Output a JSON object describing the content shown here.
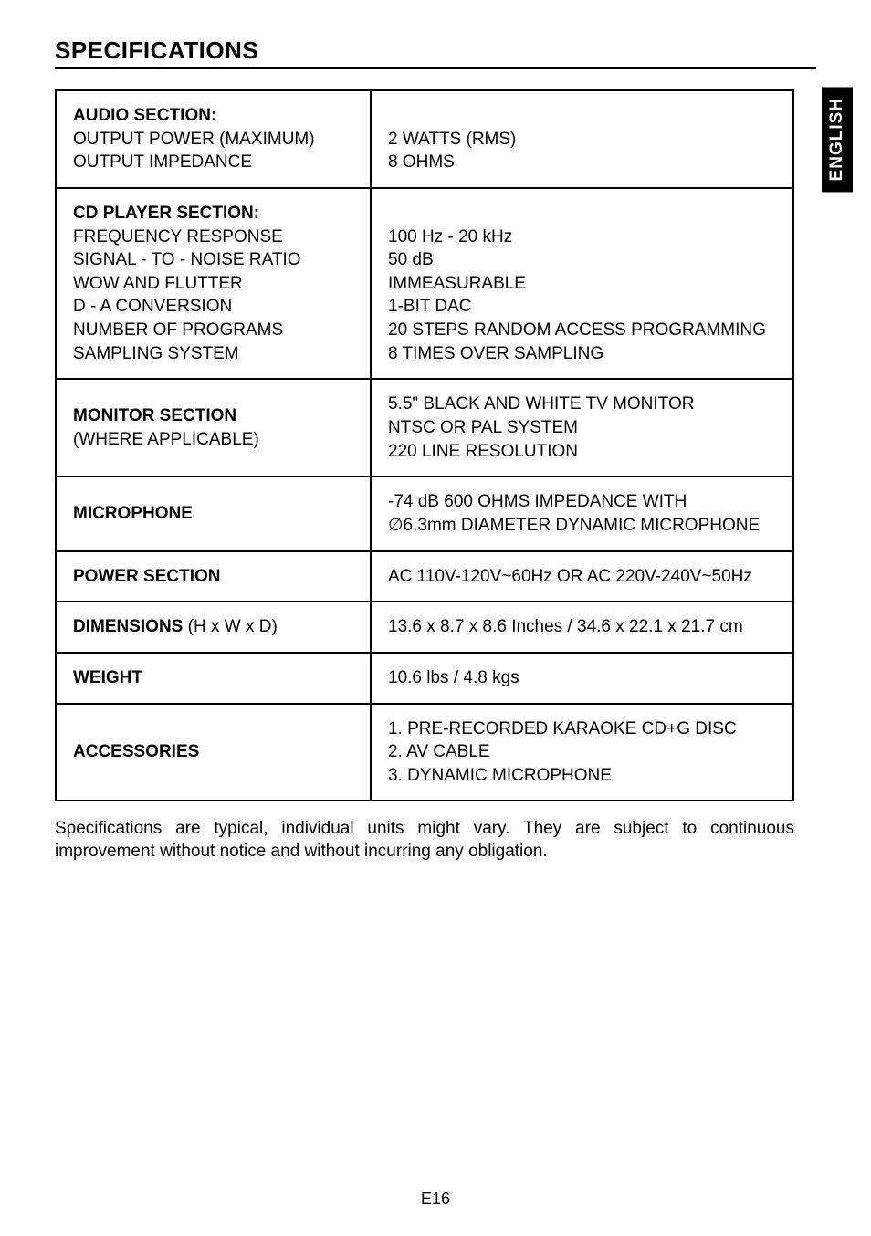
{
  "heading": "SPECIFICATIONS",
  "side_tab": "ENGLISH",
  "page_number": "E16",
  "footnote": "Specifications are typical, individual units might vary. They are subject to continuous improvement without notice and without incurring any obligation.",
  "rows": {
    "audio": {
      "title": "AUDIO SECTION:",
      "l1": "OUTPUT POWER (MAXIMUM)",
      "l2": "OUTPUT IMPEDANCE",
      "v1": "2 WATTS (RMS)",
      "v2": "8 OHMS"
    },
    "cd": {
      "title": "CD PLAYER SECTION:",
      "l1": "FREQUENCY RESPONSE",
      "l2": "SIGNAL - TO - NOISE RATIO",
      "l3": "WOW AND FLUTTER",
      "l4": "D - A CONVERSION",
      "l5": "NUMBER OF PROGRAMS",
      "l6": "SAMPLING SYSTEM",
      "v1": "100 Hz - 20 kHz",
      "v2": "50 dB",
      "v3": "IMMEASURABLE",
      "v4": "1-BIT DAC",
      "v5": "20 STEPS RANDOM ACCESS PROGRAMMING",
      "v6": "8 TIMES OVER SAMPLING"
    },
    "monitor": {
      "title": "MONITOR SECTION",
      "sub": "(WHERE APPLICABLE)",
      "v1": "5.5\" BLACK AND WHITE TV MONITOR",
      "v2": "NTSC OR PAL SYSTEM",
      "v3": "220 LINE RESOLUTION"
    },
    "mic": {
      "title": "MICROPHONE",
      "v1": "-74 dB 600 OHMS IMPEDANCE WITH",
      "v2": "∅6.3mm DIAMETER DYNAMIC MICROPHONE"
    },
    "power": {
      "title": "POWER SECTION",
      "v1": "AC 110V-120V~60Hz OR AC 220V-240V~50Hz"
    },
    "dimensions": {
      "title": "DIMENSIONS",
      "sub": " (H x W x D)",
      "v1": "13.6 x 8.7 x 8.6 Inches / 34.6 x 22.1 x 21.7 cm"
    },
    "weight": {
      "title": "WEIGHT",
      "v1": "10.6 lbs / 4.8 kgs"
    },
    "accessories": {
      "title": "ACCESSORIES",
      "v1": "1.  PRE-RECORDED KARAOKE CD+G DISC",
      "v2": "2.  AV CABLE",
      "v3": "3.  DYNAMIC MICROPHONE"
    }
  }
}
